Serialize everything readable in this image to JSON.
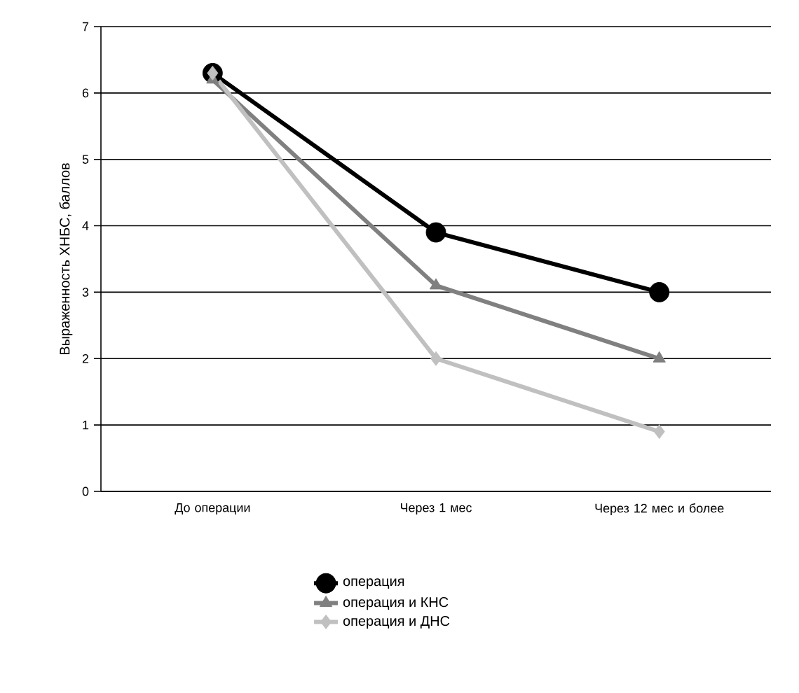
{
  "chart_data": {
    "type": "line",
    "ylabel": "Выраженность ХНБС, баллов",
    "categories": [
      "До операции",
      "Через 1 мес",
      "Через 12 мес и более"
    ],
    "series": [
      {
        "name": "операция",
        "color": "#000000",
        "marker": "circle",
        "values": [
          6.3,
          3.9,
          3.0
        ]
      },
      {
        "name": "операция и КНС",
        "color": "#808080",
        "marker": "triangle",
        "values": [
          6.2,
          3.1,
          2.0
        ]
      },
      {
        "name": "операция и ДНС",
        "color": "#c0c0c0",
        "marker": "diamond",
        "values": [
          6.3,
          2.0,
          0.9
        ]
      }
    ],
    "ylim": [
      0,
      7
    ],
    "yticks": [
      0,
      1,
      2,
      3,
      4,
      5,
      6,
      7
    ],
    "grid": "y",
    "legend": "bottom",
    "line_style": "solid"
  }
}
